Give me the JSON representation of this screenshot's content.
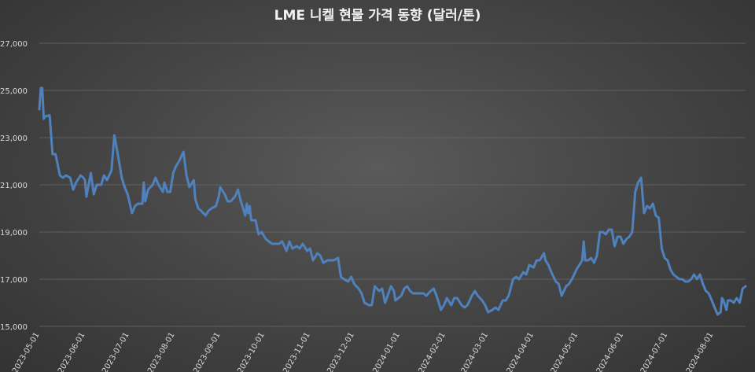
{
  "chart_data": {
    "type": "line",
    "title": "LME 니켈 현물 가격 동향 (달러/톤)",
    "xlabel": "",
    "ylabel": "",
    "ylim": [
      15000,
      27000
    ],
    "yticks": [
      "15,000",
      "17,000",
      "19,000",
      "21,000",
      "23,000",
      "25,000",
      "27,000"
    ],
    "grid": true,
    "legend": "none",
    "x_start": "2023-05-01",
    "x_end": "2024-08-23",
    "xticks": [
      "2023-05-01",
      "2023-06-01",
      "2023-07-01",
      "2023-08-01",
      "2023-09-01",
      "2023-10-01",
      "2023-11-01",
      "2023-12-01",
      "2024-01-01",
      "2024-02-01",
      "2024-03-01",
      "2024-04-01",
      "2024-05-01",
      "2024-06-01",
      "2024-07-01",
      "2024-08-01"
    ],
    "series": [
      {
        "color": "#4f81bd",
        "points": [
          [
            "2023-05-01",
            24200
          ],
          [
            "2023-05-02",
            25100
          ],
          [
            "2023-05-03",
            25100
          ],
          [
            "2023-05-04",
            23800
          ],
          [
            "2023-05-05",
            23900
          ],
          [
            "2023-05-08",
            23950
          ],
          [
            "2023-05-10",
            22300
          ],
          [
            "2023-05-12",
            22300
          ],
          [
            "2023-05-15",
            21400
          ],
          [
            "2023-05-17",
            21300
          ],
          [
            "2023-05-19",
            21400
          ],
          [
            "2023-05-22",
            21300
          ],
          [
            "2023-05-24",
            20800
          ],
          [
            "2023-05-26",
            21100
          ],
          [
            "2023-05-29",
            21400
          ],
          [
            "2023-05-31",
            21300
          ],
          [
            "2023-06-01",
            21200
          ],
          [
            "2023-06-02",
            20500
          ],
          [
            "2023-06-05",
            21500
          ],
          [
            "2023-06-07",
            20600
          ],
          [
            "2023-06-09",
            21000
          ],
          [
            "2023-06-12",
            21000
          ],
          [
            "2023-06-14",
            21400
          ],
          [
            "2023-06-16",
            21200
          ],
          [
            "2023-06-19",
            21600
          ],
          [
            "2023-06-21",
            23100
          ],
          [
            "2023-06-23",
            22400
          ],
          [
            "2023-06-26",
            21300
          ],
          [
            "2023-06-28",
            20900
          ],
          [
            "2023-06-30",
            20600
          ],
          [
            "2023-07-03",
            19800
          ],
          [
            "2023-07-05",
            20100
          ],
          [
            "2023-07-07",
            20200
          ],
          [
            "2023-07-10",
            20200
          ],
          [
            "2023-07-11",
            21100
          ],
          [
            "2023-07-12",
            20300
          ],
          [
            "2023-07-14",
            20800
          ],
          [
            "2023-07-17",
            21000
          ],
          [
            "2023-07-19",
            21300
          ],
          [
            "2023-07-21",
            21000
          ],
          [
            "2023-07-24",
            20700
          ],
          [
            "2023-07-25",
            21100
          ],
          [
            "2023-07-27",
            20700
          ],
          [
            "2023-07-29",
            20700
          ],
          [
            "2023-07-31",
            21500
          ],
          [
            "2023-08-02",
            21800
          ],
          [
            "2023-08-04",
            22000
          ],
          [
            "2023-08-07",
            22400
          ],
          [
            "2023-08-09",
            21400
          ],
          [
            "2023-08-11",
            20900
          ],
          [
            "2023-08-14",
            21200
          ],
          [
            "2023-08-15",
            20400
          ],
          [
            "2023-08-17",
            20000
          ],
          [
            "2023-08-19",
            19900
          ],
          [
            "2023-08-22",
            19700
          ],
          [
            "2023-08-24",
            19900
          ],
          [
            "2023-08-26",
            20000
          ],
          [
            "2023-08-29",
            20100
          ],
          [
            "2023-08-31",
            20500
          ],
          [
            "2023-09-01",
            20900
          ],
          [
            "2023-09-04",
            20600
          ],
          [
            "2023-09-06",
            20300
          ],
          [
            "2023-09-08",
            20300
          ],
          [
            "2023-09-11",
            20500
          ],
          [
            "2023-09-13",
            20800
          ],
          [
            "2023-09-15",
            20300
          ],
          [
            "2023-09-18",
            19700
          ],
          [
            "2023-09-19",
            20200
          ],
          [
            "2023-09-20",
            19800
          ],
          [
            "2023-09-21",
            20100
          ],
          [
            "2023-09-22",
            19500
          ],
          [
            "2023-09-25",
            19500
          ],
          [
            "2023-09-27",
            18900
          ],
          [
            "2023-09-29",
            19000
          ],
          [
            "2023-10-02",
            18700
          ],
          [
            "2023-10-04",
            18600
          ],
          [
            "2023-10-06",
            18500
          ],
          [
            "2023-10-09",
            18500
          ],
          [
            "2023-10-11",
            18500
          ],
          [
            "2023-10-13",
            18600
          ],
          [
            "2023-10-16",
            18200
          ],
          [
            "2023-10-18",
            18600
          ],
          [
            "2023-10-20",
            18300
          ],
          [
            "2023-10-23",
            18400
          ],
          [
            "2023-10-25",
            18300
          ],
          [
            "2023-10-27",
            18500
          ],
          [
            "2023-10-30",
            18200
          ],
          [
            "2023-11-01",
            18300
          ],
          [
            "2023-11-03",
            17800
          ],
          [
            "2023-11-06",
            18100
          ],
          [
            "2023-11-08",
            18000
          ],
          [
            "2023-11-10",
            17700
          ],
          [
            "2023-11-13",
            17800
          ],
          [
            "2023-11-15",
            17800
          ],
          [
            "2023-11-17",
            17800
          ],
          [
            "2023-11-20",
            17900
          ],
          [
            "2023-11-22",
            17100
          ],
          [
            "2023-11-24",
            17000
          ],
          [
            "2023-11-27",
            16900
          ],
          [
            "2023-11-29",
            17100
          ],
          [
            "2023-12-01",
            16800
          ],
          [
            "2023-12-04",
            16600
          ],
          [
            "2023-12-06",
            16400
          ],
          [
            "2023-12-08",
            16000
          ],
          [
            "2023-12-11",
            15900
          ],
          [
            "2023-12-13",
            15900
          ],
          [
            "2023-12-15",
            16700
          ],
          [
            "2023-12-18",
            16500
          ],
          [
            "2023-12-20",
            16600
          ],
          [
            "2023-12-22",
            16000
          ],
          [
            "2023-12-26",
            16700
          ],
          [
            "2023-12-28",
            16500
          ],
          [
            "2023-12-29",
            16100
          ],
          [
            "2024-01-02",
            16300
          ],
          [
            "2024-01-04",
            16600
          ],
          [
            "2024-01-06",
            16700
          ],
          [
            "2024-01-08",
            16500
          ],
          [
            "2024-01-10",
            16400
          ],
          [
            "2024-01-12",
            16400
          ],
          [
            "2024-01-15",
            16400
          ],
          [
            "2024-01-17",
            16400
          ],
          [
            "2024-01-19",
            16300
          ],
          [
            "2024-01-22",
            16500
          ],
          [
            "2024-01-24",
            16600
          ],
          [
            "2024-01-26",
            16300
          ],
          [
            "2024-01-29",
            15700
          ],
          [
            "2024-01-31",
            15900
          ],
          [
            "2024-02-02",
            16200
          ],
          [
            "2024-02-05",
            15900
          ],
          [
            "2024-02-07",
            16200
          ],
          [
            "2024-02-09",
            16200
          ],
          [
            "2024-02-12",
            15900
          ],
          [
            "2024-02-14",
            15800
          ],
          [
            "2024-02-16",
            15900
          ],
          [
            "2024-02-19",
            16300
          ],
          [
            "2024-02-21",
            16500
          ],
          [
            "2024-02-23",
            16300
          ],
          [
            "2024-02-26",
            16100
          ],
          [
            "2024-02-28",
            15900
          ],
          [
            "2024-03-01",
            15600
          ],
          [
            "2024-03-04",
            15700
          ],
          [
            "2024-03-06",
            15800
          ],
          [
            "2024-03-08",
            15700
          ],
          [
            "2024-03-11",
            16100
          ],
          [
            "2024-03-13",
            16100
          ],
          [
            "2024-03-15",
            16300
          ],
          [
            "2024-03-18",
            17000
          ],
          [
            "2024-03-20",
            17100
          ],
          [
            "2024-03-22",
            17000
          ],
          [
            "2024-03-25",
            17300
          ],
          [
            "2024-03-27",
            17200
          ],
          [
            "2024-03-29",
            17600
          ],
          [
            "2024-04-01",
            17500
          ],
          [
            "2024-04-03",
            17800
          ],
          [
            "2024-04-05",
            17800
          ],
          [
            "2024-04-08",
            18100
          ],
          [
            "2024-04-09",
            17800
          ],
          [
            "2024-04-11",
            17600
          ],
          [
            "2024-04-13",
            17300
          ],
          [
            "2024-04-16",
            16900
          ],
          [
            "2024-04-18",
            16800
          ],
          [
            "2024-04-20",
            16300
          ],
          [
            "2024-04-23",
            16700
          ],
          [
            "2024-04-25",
            16800
          ],
          [
            "2024-04-27",
            17000
          ],
          [
            "2024-04-30",
            17400
          ],
          [
            "2024-05-02",
            17600
          ],
          [
            "2024-05-04",
            17800
          ],
          [
            "2024-05-05",
            18600
          ],
          [
            "2024-05-06",
            17800
          ],
          [
            "2024-05-08",
            17800
          ],
          [
            "2024-05-10",
            17900
          ],
          [
            "2024-05-12",
            17700
          ],
          [
            "2024-05-14",
            18000
          ],
          [
            "2024-05-16",
            19000
          ],
          [
            "2024-05-18",
            19000
          ],
          [
            "2024-05-20",
            18900
          ],
          [
            "2024-05-22",
            19100
          ],
          [
            "2024-05-24",
            19100
          ],
          [
            "2024-05-26",
            18400
          ],
          [
            "2024-05-28",
            18800
          ],
          [
            "2024-05-30",
            18800
          ],
          [
            "2024-06-01",
            18500
          ],
          [
            "2024-06-03",
            18700
          ],
          [
            "2024-06-05",
            18800
          ],
          [
            "2024-06-07",
            19000
          ],
          [
            "2024-06-09",
            20700
          ],
          [
            "2024-06-11",
            21100
          ],
          [
            "2024-06-13",
            21300
          ],
          [
            "2024-06-15",
            19800
          ],
          [
            "2024-06-17",
            20100
          ],
          [
            "2024-06-19",
            20000
          ],
          [
            "2024-06-21",
            20200
          ],
          [
            "2024-06-23",
            19700
          ],
          [
            "2024-06-25",
            19600
          ],
          [
            "2024-06-27",
            18300
          ],
          [
            "2024-06-29",
            17900
          ],
          [
            "2024-07-01",
            17800
          ],
          [
            "2024-07-03",
            17400
          ],
          [
            "2024-07-05",
            17200
          ],
          [
            "2024-07-07",
            17100
          ],
          [
            "2024-07-09",
            17000
          ],
          [
            "2024-07-11",
            17000
          ],
          [
            "2024-07-13",
            16900
          ],
          [
            "2024-07-15",
            16900
          ],
          [
            "2024-07-17",
            17000
          ],
          [
            "2024-07-19",
            17200
          ],
          [
            "2024-07-21",
            17000
          ],
          [
            "2024-07-23",
            17200
          ],
          [
            "2024-07-25",
            16800
          ],
          [
            "2024-07-27",
            16500
          ],
          [
            "2024-07-29",
            16400
          ],
          [
            "2024-07-31",
            16100
          ],
          [
            "2024-08-02",
            15800
          ],
          [
            "2024-08-04",
            15500
          ],
          [
            "2024-08-06",
            15600
          ],
          [
            "2024-08-07",
            16200
          ],
          [
            "2024-08-08",
            16100
          ],
          [
            "2024-08-10",
            15700
          ],
          [
            "2024-08-11",
            16100
          ],
          [
            "2024-08-13",
            16100
          ],
          [
            "2024-08-15",
            16000
          ],
          [
            "2024-08-17",
            16200
          ],
          [
            "2024-08-19",
            16000
          ],
          [
            "2024-08-21",
            16600
          ],
          [
            "2024-08-23",
            16700
          ]
        ]
      }
    ]
  }
}
